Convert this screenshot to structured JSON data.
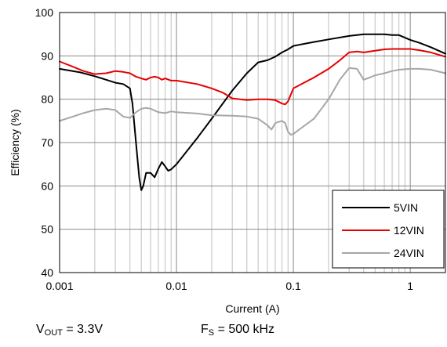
{
  "chart_data": {
    "type": "line",
    "title": "",
    "xlabel": "Current (A)",
    "ylabel": "Efficiency (%)",
    "xscale": "log",
    "xlim": [
      0.001,
      2
    ],
    "ylim": [
      40,
      100
    ],
    "x_ticks": [
      "0.001",
      "0.01",
      "0.1",
      "1"
    ],
    "y_ticks": [
      "40",
      "50",
      "60",
      "70",
      "80",
      "90",
      "100"
    ],
    "grid": "log-vertical minor and major, horizontal at each y tick",
    "legend_position": "bottom-right",
    "series": [
      {
        "name": "5VIN",
        "color": "#000000",
        "x": [
          0.001,
          0.0015,
          0.002,
          0.0025,
          0.003,
          0.0035,
          0.004,
          0.0042,
          0.0045,
          0.0048,
          0.005,
          0.0052,
          0.0055,
          0.006,
          0.0065,
          0.007,
          0.0075,
          0.008,
          0.0085,
          0.009,
          0.01,
          0.015,
          0.02,
          0.03,
          0.04,
          0.05,
          0.06,
          0.07,
          0.08,
          0.09,
          0.1,
          0.15,
          0.2,
          0.3,
          0.4,
          0.5,
          0.6,
          0.7,
          0.8,
          1.0,
          1.2,
          1.5,
          2.0
        ],
        "y": [
          87,
          86.2,
          85.3,
          84.5,
          83.8,
          83.5,
          82.5,
          79,
          70,
          62,
          59,
          60,
          63,
          63,
          62,
          64,
          65.5,
          64.5,
          63.5,
          63.8,
          65,
          71,
          75.5,
          82,
          86,
          88.5,
          89,
          89.8,
          90.8,
          91.5,
          92.3,
          93.2,
          93.8,
          94.6,
          95,
          95,
          95,
          94.8,
          94.8,
          93.7,
          93,
          92,
          90.5
        ]
      },
      {
        "name": "12VIN",
        "color": "#e60000",
        "x": [
          0.001,
          0.0013,
          0.0016,
          0.002,
          0.0025,
          0.003,
          0.0035,
          0.004,
          0.0045,
          0.005,
          0.0055,
          0.006,
          0.0065,
          0.007,
          0.0075,
          0.008,
          0.009,
          0.01,
          0.015,
          0.02,
          0.025,
          0.03,
          0.04,
          0.05,
          0.06,
          0.07,
          0.08,
          0.085,
          0.09,
          0.1,
          0.15,
          0.2,
          0.25,
          0.3,
          0.35,
          0.4,
          0.5,
          0.6,
          0.7,
          0.8,
          1.0,
          1.2,
          1.5,
          2.0
        ],
        "y": [
          88.7,
          87.5,
          86.5,
          85.8,
          86,
          86.5,
          86.3,
          86,
          85.2,
          84.8,
          84.5,
          85,
          85.2,
          85,
          84.5,
          84.8,
          84.3,
          84.3,
          83.5,
          82.5,
          81.5,
          80.2,
          79.8,
          80,
          80,
          79.8,
          79,
          78.8,
          79.5,
          82.5,
          85,
          87,
          89,
          90.8,
          91,
          90.8,
          91.2,
          91.5,
          91.6,
          91.6,
          91.6,
          91.3,
          90.8,
          89.8
        ]
      },
      {
        "name": "24VIN",
        "color": "#a6a6a6",
        "x": [
          0.001,
          0.0013,
          0.0016,
          0.002,
          0.0025,
          0.003,
          0.0035,
          0.004,
          0.0045,
          0.005,
          0.0055,
          0.006,
          0.007,
          0.008,
          0.009,
          0.01,
          0.015,
          0.02,
          0.03,
          0.04,
          0.05,
          0.06,
          0.065,
          0.07,
          0.08,
          0.085,
          0.09,
          0.095,
          0.1,
          0.15,
          0.2,
          0.25,
          0.3,
          0.35,
          0.4,
          0.45,
          0.5,
          0.6,
          0.7,
          0.8,
          1.0,
          1.2,
          1.5,
          2.0
        ],
        "y": [
          75,
          76,
          76.8,
          77.5,
          77.8,
          77.5,
          76,
          75.7,
          77,
          77.8,
          78,
          77.8,
          77,
          76.8,
          77.2,
          77,
          76.7,
          76.3,
          76.2,
          76,
          75.5,
          74,
          73,
          74.5,
          75,
          74.5,
          72.5,
          71.8,
          72,
          75.5,
          80,
          84.5,
          87.2,
          87,
          84.5,
          85,
          85.5,
          86,
          86.5,
          86.8,
          87,
          87,
          86.8,
          86
        ]
      }
    ],
    "annotations": {
      "vout": {
        "symbol": "V",
        "sub": "OUT",
        "text": " = 3.3V"
      },
      "fs": {
        "symbol": "F",
        "sub": "S",
        "text": " = 500 kHz"
      }
    }
  }
}
